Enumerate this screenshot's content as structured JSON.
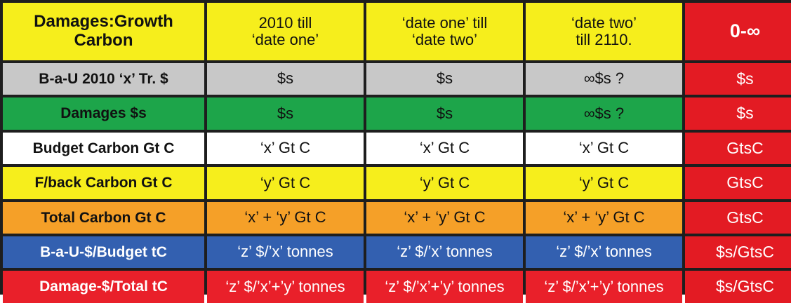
{
  "table": {
    "header": {
      "label": "Damages:Growth\nCarbon",
      "col1": "2010 till\n‘date one’",
      "col2": "‘date one’ till\n‘date two’",
      "col3": "‘date two’\ntill 2110.",
      "col4": "0-∞"
    },
    "rows": [
      {
        "label": "B-a-U  2010 ‘x’ Tr. $",
        "c1": "$s",
        "c2": "$s",
        "c3": "∞$s ?",
        "c4": "$s",
        "color": "#c8c8c8"
      },
      {
        "label": "Damages $s",
        "c1": "$s",
        "c2": "$s",
        "c3": "∞$s ?",
        "c4": "$s",
        "color": "#1da54a"
      },
      {
        "label": "Budget Carbon Gt C",
        "c1": "‘x’ Gt C",
        "c2": "‘x’ Gt C",
        "c3": "‘x’ Gt C",
        "c4": "GtsC",
        "color": "#ffffff"
      },
      {
        "label": "F/back Carbon Gt C",
        "c1": "‘y’ Gt C",
        "c2": "‘y’ Gt C",
        "c3": "‘y’ Gt C",
        "c4": "GtsC",
        "color": "#f6ee1c"
      },
      {
        "label": "Total Carbon Gt C",
        "c1": "‘x’ + ‘y’ Gt C",
        "c2": "‘x’ + ‘y’ Gt C",
        "c3": "‘x’ + ‘y’ Gt C",
        "c4": "GtsC",
        "color": "#f5a028"
      },
      {
        "label": "B-a-U-$/Budget tC",
        "c1": "‘z’ $/’x’ tonnes",
        "c2": "‘z’ $/’x’ tonnes",
        "c3": "‘z’ $/’x’ tonnes",
        "c4": "$s/GtsC",
        "color": "#3360b0"
      },
      {
        "label": "Damage-$/Total tC",
        "c1": "‘z’ $/’x’+’y’ tonnes",
        "c2": "‘z’ $/’x’+’y’ tonnes",
        "c3": "‘z’ $/’x’+’y’ tonnes",
        "c4": "$s/GtsC",
        "color": "#e9202a"
      }
    ]
  },
  "colors": {
    "header": "#f6ee1c",
    "last_column": "#e31b23",
    "grid_lines": "#1e1e1e"
  }
}
